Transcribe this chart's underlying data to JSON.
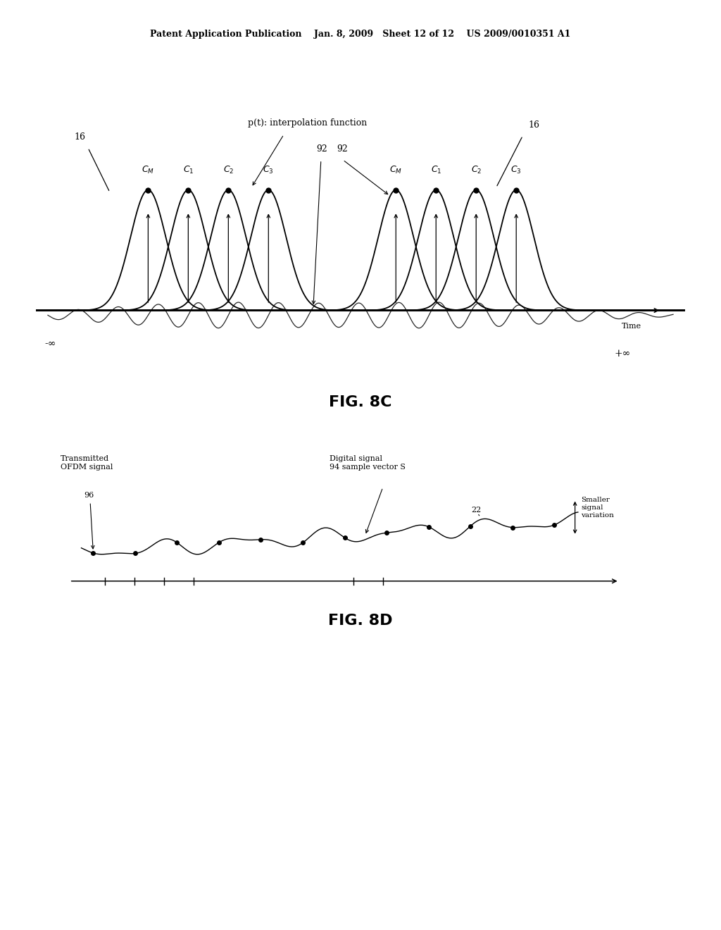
{
  "bg_color": "#ffffff",
  "header_text": "Patent Application Publication    Jan. 8, 2009   Sheet 12 of 12    US 2009/0010351 A1",
  "fig8c_label": "FIG. 8C",
  "fig8d_label": "FIG. 8D",
  "pt_label": "p(t): interpolation function",
  "time_label": "Time",
  "minus_inf": "-∞",
  "plus_inf": "+∞",
  "label_16_left": "16",
  "label_16_right": "16",
  "label_92a": "92",
  "label_92b": "92",
  "c_labels_left": [
    "C_M",
    "C_1",
    "C_2",
    "C_3"
  ],
  "c_labels_right": [
    "C_M",
    "C_1",
    "C_2",
    "C_3"
  ],
  "c_subscripts_left": [
    "M",
    "1",
    "2",
    "3"
  ],
  "c_subscripts_right": [
    "M",
    "1",
    "2",
    "3"
  ],
  "fig8d_transmitted": "Transmitted\nOFDM signal",
  "fig8d_96": "96",
  "fig8d_digital": "Digital signal\n94 sample vector S",
  "fig8d_22": "22",
  "fig8d_smaller": "Smaller\nsignal\nvariation",
  "text_color": "#000000",
  "font_size_header": 9,
  "font_size_fig": 16,
  "font_size_label": 9
}
